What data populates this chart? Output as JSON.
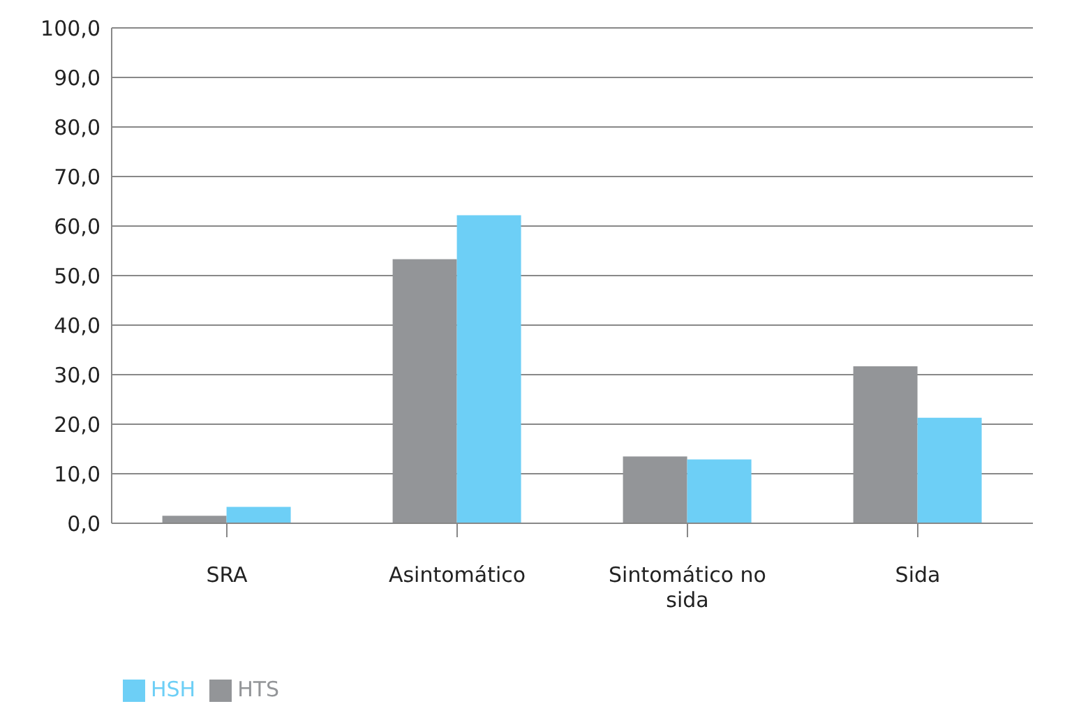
{
  "chart_data": {
    "type": "bar",
    "categories": [
      "SRA",
      "Asintomático",
      "Sintomático no sida",
      "Sida"
    ],
    "series": [
      {
        "name": "HTS",
        "color": "#939598",
        "values": [
          1.5,
          53.3,
          13.5,
          31.7
        ]
      },
      {
        "name": "HSH",
        "color": "#6dcff6",
        "values": [
          3.3,
          62.2,
          12.9,
          21.3
        ]
      }
    ],
    "ylim": [
      0,
      100
    ],
    "yticks": [
      {
        "value": 0,
        "label": "0,0"
      },
      {
        "value": 10,
        "label": "10,0"
      },
      {
        "value": 20,
        "label": "20,0"
      },
      {
        "value": 30,
        "label": "30,0"
      },
      {
        "value": 40,
        "label": "40,0"
      },
      {
        "value": 50,
        "label": "50,0"
      },
      {
        "value": 60,
        "label": "60,0"
      },
      {
        "value": 70,
        "label": "70,0"
      },
      {
        "value": 80,
        "label": "80,0"
      },
      {
        "value": 90,
        "label": "90,0"
      },
      {
        "value": 100,
        "label": "100,0"
      }
    ],
    "grid": "y",
    "legend": "bottom left"
  }
}
